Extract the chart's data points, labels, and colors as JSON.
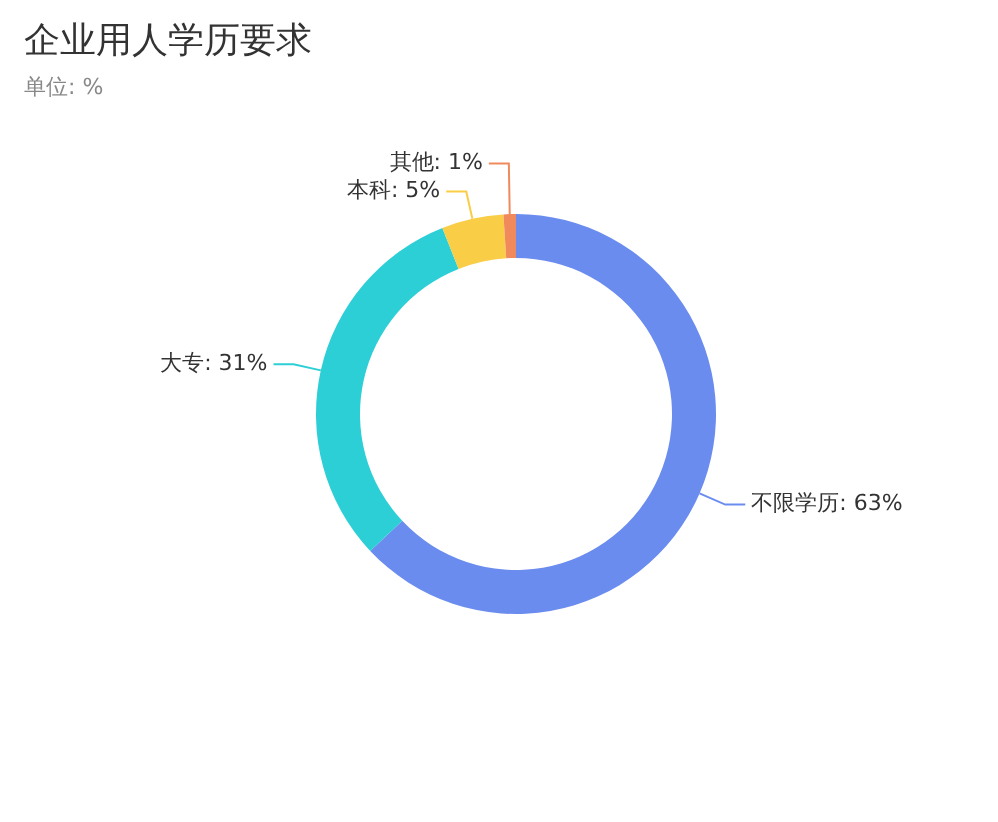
{
  "chart_data": {
    "type": "donut",
    "title": "企业用人学历要求",
    "subtitle": "单位: %",
    "categories": [
      "不限学历",
      "大专",
      "本科",
      "其他"
    ],
    "values": [
      63,
      31,
      5,
      1
    ],
    "value_labels": [
      "63%",
      "31%",
      "5%",
      "1%"
    ],
    "colors": [
      "#6b8cef",
      "#2dcfd6",
      "#f9cd46",
      "#f08a5d"
    ],
    "legend": false
  }
}
